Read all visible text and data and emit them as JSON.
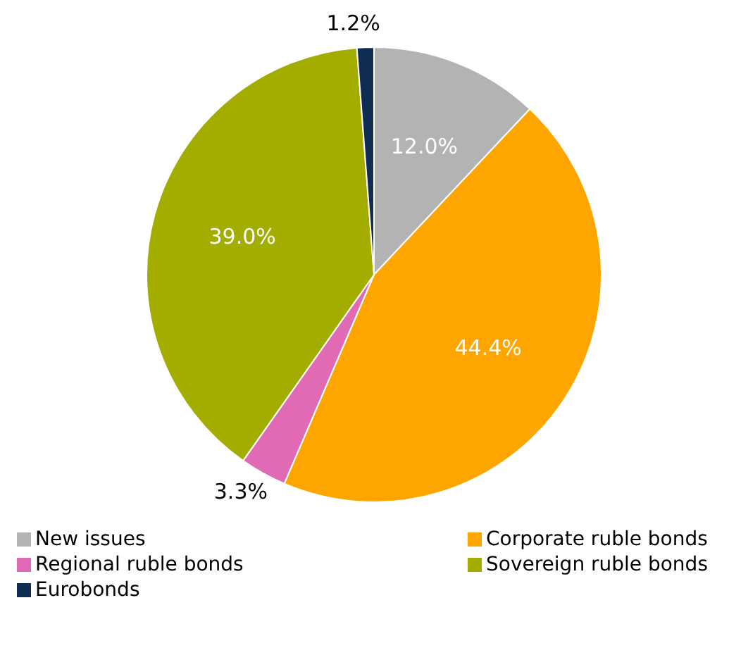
{
  "chart_data": {
    "type": "pie",
    "categories": [
      "New issues",
      "Corporate ruble bonds",
      "Regional ruble bonds",
      "Sovereign ruble bonds",
      "Eurobonds"
    ],
    "values": [
      12.0,
      44.4,
      3.3,
      39.0,
      1.2
    ],
    "colors": [
      "#b3b3b3",
      "#ffa500",
      "#e06ab4",
      "#a3ad00",
      "#0f2d50"
    ],
    "value_labels": [
      "12.0%",
      "44.4%",
      "3.3%",
      "39.0%",
      "1.2%"
    ],
    "legend": "bottom"
  }
}
